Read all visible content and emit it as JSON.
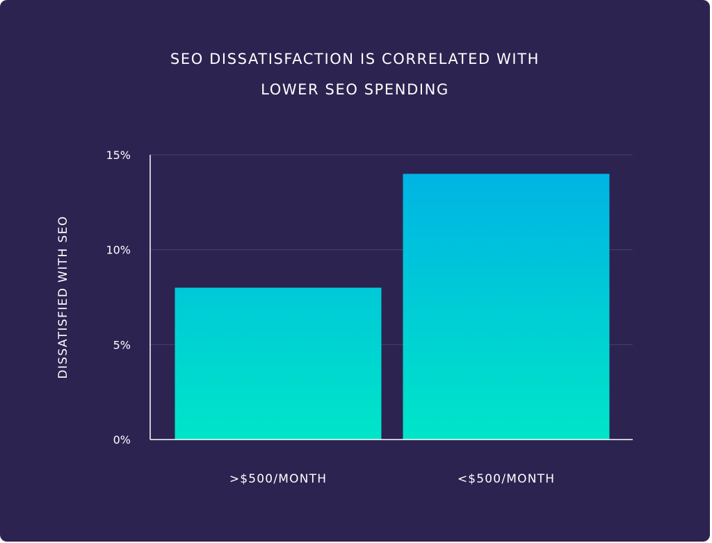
{
  "chart_data": {
    "type": "bar",
    "title_lines": [
      "SEO DISSATISFACTION IS CORRELATED WITH",
      "LOWER SEO SPENDING"
    ],
    "xlabel": "",
    "ylabel": "DISSATISFIED WITH SEO",
    "categories": [
      ">$500/MONTH",
      "<$500/MONTH"
    ],
    "values": [
      8,
      14
    ],
    "ylim": [
      0,
      15
    ],
    "yticks": [
      0,
      5,
      10,
      15
    ],
    "ytick_labels": [
      "0%",
      "5%",
      "10%",
      "15%"
    ],
    "grid": true,
    "bar_gradient": [
      "#00e5c8",
      "#00b0e6"
    ]
  },
  "colors": {
    "background": "#2d2350",
    "gridline": "#4a4170",
    "axis": "#ffffff",
    "text": "#ffffff"
  }
}
